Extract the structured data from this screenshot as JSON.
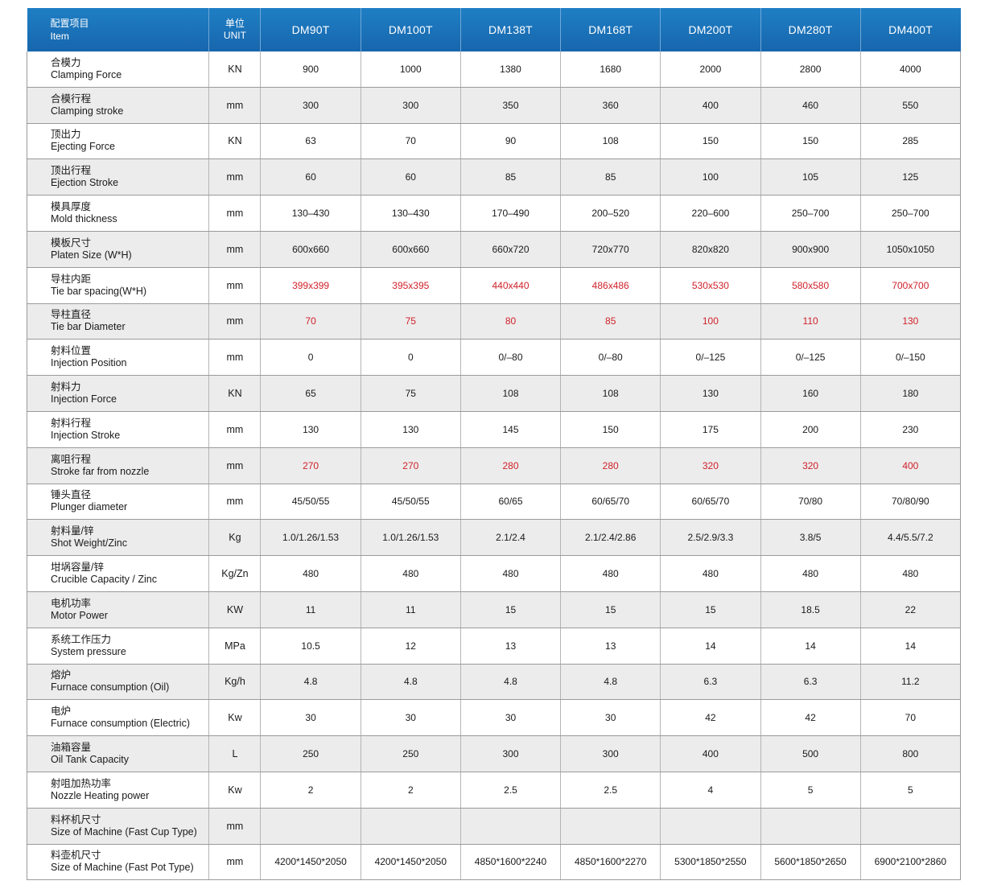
{
  "header": {
    "item_zh": "配置项目",
    "item_en": "Item",
    "unit_zh": "单位",
    "unit_en": "UNIT",
    "models": [
      "DM90T",
      "DM100T",
      "DM138T",
      "DM168T",
      "DM200T",
      "DM280T",
      "DM400T"
    ]
  },
  "highlight_color": "#d0212a",
  "header_color": "#1a6fb5",
  "rows": [
    {
      "zh": "合模力",
      "en": "Clamping Force",
      "unit": "KN",
      "values": [
        "900",
        "1000",
        "1380",
        "1680",
        "2000",
        "2800",
        "4000"
      ],
      "highlight": false
    },
    {
      "zh": "合模行程",
      "en": "Clamping stroke",
      "unit": "mm",
      "values": [
        "300",
        "300",
        "350",
        "360",
        "400",
        "460",
        "550"
      ],
      "highlight": false
    },
    {
      "zh": "顶出力",
      "en": "Ejecting Force",
      "unit": "KN",
      "values": [
        "63",
        "70",
        "90",
        "108",
        "150",
        "150",
        "285"
      ],
      "highlight": false
    },
    {
      "zh": "顶出行程",
      "en": "Ejection Stroke",
      "unit": "mm",
      "values": [
        "60",
        "60",
        "85",
        "85",
        "100",
        "105",
        "125"
      ],
      "highlight": false
    },
    {
      "zh": "模具厚度",
      "en": "Mold thickness",
      "unit": "mm",
      "values": [
        "130–430",
        "130–430",
        "170–490",
        "200–520",
        "220–600",
        "250–700",
        "250–700"
      ],
      "highlight": false
    },
    {
      "zh": "模板尺寸",
      "en": "Platen Size (W*H)",
      "unit": "mm",
      "values": [
        "600x660",
        "600x660",
        "660x720",
        "720x770",
        "820x820",
        "900x900",
        "1050x1050"
      ],
      "highlight": false
    },
    {
      "zh": "导柱内距",
      "en": "Tie bar spacing(W*H)",
      "unit": "mm",
      "values": [
        "399x399",
        "395x395",
        "440x440",
        "486x486",
        "530x530",
        "580x580",
        "700x700"
      ],
      "highlight": true
    },
    {
      "zh": "导柱直径",
      "en": "Tie bar Diameter",
      "unit": "mm",
      "values": [
        "70",
        "75",
        "80",
        "85",
        "100",
        "110",
        "130"
      ],
      "highlight": true
    },
    {
      "zh": "射料位置",
      "en": "Injection Position",
      "unit": "mm",
      "values": [
        "0",
        "0",
        "0/–80",
        "0/–80",
        "0/–125",
        "0/–125",
        "0/–150"
      ],
      "highlight": false
    },
    {
      "zh": "射料力",
      "en": "Injection Force",
      "unit": "KN",
      "values": [
        "65",
        "75",
        "108",
        "108",
        "130",
        "160",
        "180"
      ],
      "highlight": false
    },
    {
      "zh": "射料行程",
      "en": "Injection Stroke",
      "unit": "mm",
      "values": [
        "130",
        "130",
        "145",
        "150",
        "175",
        "200",
        "230"
      ],
      "highlight": false
    },
    {
      "zh": "离咀行程",
      "en": "Stroke far from nozzle",
      "unit": "mm",
      "values": [
        "270",
        "270",
        "280",
        "280",
        "320",
        "320",
        "400"
      ],
      "highlight": true
    },
    {
      "zh": "锤头直径",
      "en": "Plunger diameter",
      "unit": "mm",
      "values": [
        "45/50/55",
        "45/50/55",
        "60/65",
        "60/65/70",
        "60/65/70",
        "70/80",
        "70/80/90"
      ],
      "highlight": false
    },
    {
      "zh": "射料量/锌",
      "en": "Shot Weight/Zinc",
      "unit": "Kg",
      "values": [
        "1.0/1.26/1.53",
        "1.0/1.26/1.53",
        "2.1/2.4",
        "2.1/2.4/2.86",
        "2.5/2.9/3.3",
        "3.8/5",
        "4.4/5.5/7.2"
      ],
      "highlight": false
    },
    {
      "zh": "坩埚容量/锌",
      "en": "Crucible Capacity / Zinc",
      "unit": "Kg/Zn",
      "values": [
        "480",
        "480",
        "480",
        "480",
        "480",
        "480",
        "480"
      ],
      "highlight": false
    },
    {
      "zh": "电机功率",
      "en": "Motor Power",
      "unit": "KW",
      "values": [
        "11",
        "11",
        "15",
        "15",
        "15",
        "18.5",
        "22"
      ],
      "highlight": false
    },
    {
      "zh": "系统工作压力",
      "en": "System pressure",
      "unit": "MPa",
      "values": [
        "10.5",
        "12",
        "13",
        "13",
        "14",
        "14",
        "14"
      ],
      "highlight": false
    },
    {
      "zh": "熔炉",
      "en": "Furnace consumption (Oil)",
      "unit": "Kg/h",
      "values": [
        "4.8",
        "4.8",
        "4.8",
        "4.8",
        "6.3",
        "6.3",
        "11.2"
      ],
      "highlight": false
    },
    {
      "zh": "电炉",
      "en": "Furnace consumption (Electric)",
      "unit": "Kw",
      "values": [
        "30",
        "30",
        "30",
        "30",
        "42",
        "42",
        "70"
      ],
      "highlight": false
    },
    {
      "zh": "油箱容量",
      "en": "Oil Tank Capacity",
      "unit": "L",
      "values": [
        "250",
        "250",
        "300",
        "300",
        "400",
        "500",
        "800"
      ],
      "highlight": false
    },
    {
      "zh": "射咀加热功率",
      "en": "Nozzle Heating power",
      "unit": "Kw",
      "values": [
        "2",
        "2",
        "2.5",
        "2.5",
        "4",
        "5",
        "5"
      ],
      "highlight": false
    },
    {
      "zh": "料杯机尺寸",
      "en": "Size of Machine (Fast Cup Type)",
      "unit": "mm",
      "values": [
        "",
        "",
        "",
        "",
        "",
        "",
        ""
      ],
      "highlight": false
    },
    {
      "zh": "料壶机尺寸",
      "en": "Size of Machine (Fast Pot Type)",
      "unit": "mm",
      "values": [
        "4200*1450*2050",
        "4200*1450*2050",
        "4850*1600*2240",
        "4850*1600*2270",
        "5300*1850*2550",
        "5600*1850*2650",
        "6900*2100*2860"
      ],
      "highlight": false
    }
  ]
}
